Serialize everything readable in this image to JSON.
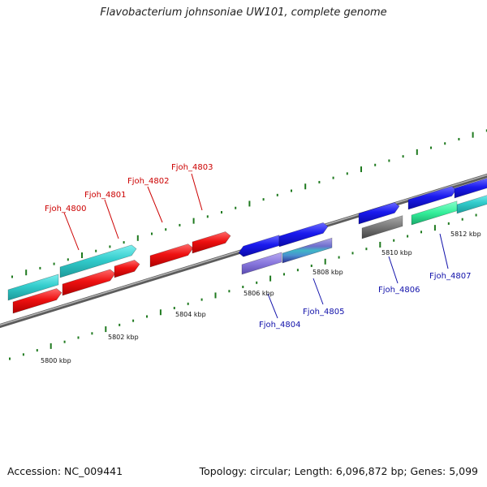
{
  "title": "Flavobacterium johnsoniae UW101, complete genome",
  "accession": "Accession: NC_009441",
  "summary": "Topology: circular; Length: 6,096,872 bp; Genes: 5,099",
  "colors": {
    "backbone": "#8a8a8a",
    "ticks": "#1f7a1f",
    "label_red": "#cc0000",
    "label_blue": "#1010aa",
    "gene_cyan": "#33cccc",
    "gene_red": "#ee1111",
    "gene_blue": "#1a1aee",
    "gene_lavender": "#8877dd",
    "gene_gray": "#777777",
    "gene_green": "#33ee99"
  },
  "scale_labels": [
    {
      "id": "kbp-5800",
      "text": "5800 kbp"
    },
    {
      "id": "kbp-5802",
      "text": "5802 kbp"
    },
    {
      "id": "kbp-5804",
      "text": "5804 kbp"
    },
    {
      "id": "kbp-5806",
      "text": "5806 kbp"
    },
    {
      "id": "kbp-5808",
      "text": "5808 kbp"
    },
    {
      "id": "kbp-5810",
      "text": "5810 kbp"
    },
    {
      "id": "kbp-5812",
      "text": "5812 kbp"
    }
  ],
  "gene_labels": [
    {
      "id": "fjoh-4800",
      "text": "Fjoh_4800",
      "color": "label_red"
    },
    {
      "id": "fjoh-4801",
      "text": "Fjoh_4801",
      "color": "label_red"
    },
    {
      "id": "fjoh-4802",
      "text": "Fjoh_4802",
      "color": "label_red"
    },
    {
      "id": "fjoh-4803",
      "text": "Fjoh_4803",
      "color": "label_red"
    },
    {
      "id": "fjoh-4804",
      "text": "Fjoh_4804",
      "color": "label_blue"
    },
    {
      "id": "fjoh-4805",
      "text": "Fjoh_4805",
      "color": "label_blue"
    },
    {
      "id": "fjoh-4806",
      "text": "Fjoh_4806",
      "color": "label_blue"
    },
    {
      "id": "fjoh-4807",
      "text": "Fjoh_4807",
      "color": "label_blue"
    }
  ]
}
